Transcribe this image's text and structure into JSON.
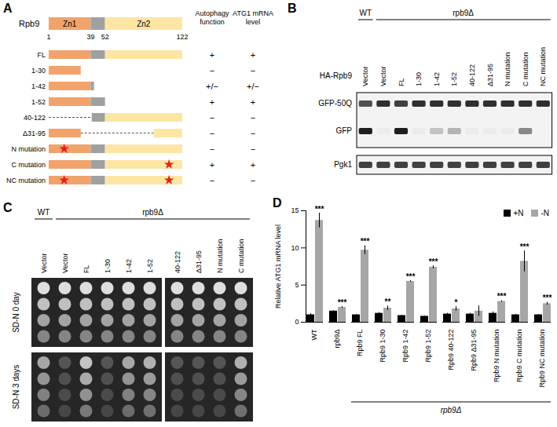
{
  "panels": {
    "A": {
      "label": "A",
      "protein": "Rpb9",
      "domains": [
        {
          "name": "Zn1",
          "start": 1,
          "end": 39,
          "color": "#f2a36b"
        },
        {
          "start": 39,
          "end": 52,
          "color": "#a0a0a0"
        },
        {
          "name": "Zn2",
          "start": 52,
          "end": 122,
          "color": "#fde6a3"
        }
      ],
      "residue_ticks": [
        1,
        39,
        52,
        122
      ],
      "columns": [
        "Autophagy function",
        "ATG1 mRNA level"
      ],
      "mutation_color": "#e02020",
      "constructs": [
        {
          "name": "FL",
          "segments": [
            [
              1,
              122
            ]
          ],
          "mutations": [],
          "results": [
            "+",
            "+"
          ]
        },
        {
          "name": "1-30",
          "segments": [
            [
              1,
              30
            ]
          ],
          "mutations": [],
          "results": [
            "−",
            "−"
          ]
        },
        {
          "name": "1-42",
          "segments": [
            [
              1,
              42
            ]
          ],
          "mutations": [],
          "results": [
            "+/−",
            "+/−"
          ]
        },
        {
          "name": "1-52",
          "segments": [
            [
              1,
              52
            ]
          ],
          "mutations": [],
          "results": [
            "+",
            "+"
          ]
        },
        {
          "name": "40-122",
          "segments": [
            [
              40,
              122
            ]
          ],
          "mutations": [],
          "results": [
            "−",
            "−"
          ]
        },
        {
          "name": "Δ31-95",
          "segments": [
            [
              1,
              30
            ],
            [
              96,
              122
            ]
          ],
          "mutations": [],
          "results": [
            "−",
            "−"
          ]
        },
        {
          "name": "N mutation",
          "segments": [
            [
              1,
              122
            ]
          ],
          "mutations": [
            15
          ],
          "results": [
            "−",
            "−"
          ]
        },
        {
          "name": "C mutation",
          "segments": [
            [
              1,
              122
            ]
          ],
          "mutations": [
            110
          ],
          "results": [
            "+",
            "+"
          ]
        },
        {
          "name": "NC mutation",
          "segments": [
            [
              1,
              122
            ]
          ],
          "mutations": [
            15,
            110
          ],
          "results": [
            "−",
            "−"
          ]
        }
      ]
    },
    "B": {
      "label": "B",
      "row_label": "HA-Rpb9",
      "lanes": [
        {
          "genotype": "WT",
          "plasmid": "Vector"
        },
        {
          "genotype": "rpb9Δ",
          "plasmid": "Vector"
        },
        {
          "genotype": "rpb9Δ",
          "plasmid": "FL"
        },
        {
          "genotype": "rpb9Δ",
          "plasmid": "1-30"
        },
        {
          "genotype": "rpb9Δ",
          "plasmid": "1-42"
        },
        {
          "genotype": "rpb9Δ",
          "plasmid": "1-52"
        },
        {
          "genotype": "rpb9Δ",
          "plasmid": "40-122"
        },
        {
          "genotype": "rpb9Δ",
          "plasmid": "Δ31-95"
        },
        {
          "genotype": "rpb9Δ",
          "plasmid": "N mutation"
        },
        {
          "genotype": "rpb9Δ",
          "plasmid": "C mutation"
        },
        {
          "genotype": "rpb9Δ",
          "plasmid": "NC mutation"
        }
      ],
      "bands": [
        {
          "name": "GFP-50Q",
          "intensity": [
            0.75,
            0.85,
            0.8,
            0.85,
            0.85,
            0.85,
            0.85,
            0.85,
            0.85,
            0.85,
            0.85
          ]
        },
        {
          "name": "GFP",
          "intensity": [
            0.9,
            0.15,
            0.9,
            0.15,
            0.35,
            0.4,
            0.15,
            0.15,
            0.15,
            0.55,
            0.1
          ]
        },
        {
          "name": "Pgk1",
          "intensity": [
            0.8,
            0.8,
            0.8,
            0.8,
            0.8,
            0.8,
            0.8,
            0.8,
            0.8,
            0.8,
            0.8
          ]
        }
      ]
    },
    "C": {
      "label": "C",
      "conditions": [
        "SD-N 0 day",
        "SD-N 3 days"
      ],
      "plates": [
        {
          "lanes": [
            {
              "genotype": "WT",
              "plasmid": "Vector"
            },
            {
              "genotype": "rpb9Δ",
              "plasmid": "Vector"
            },
            {
              "genotype": "rpb9Δ",
              "plasmid": "FL"
            },
            {
              "genotype": "rpb9Δ",
              "plasmid": "1-30"
            },
            {
              "genotype": "rpb9Δ",
              "plasmid": "1-42"
            },
            {
              "genotype": "rpb9Δ",
              "plasmid": "1-52"
            }
          ],
          "growth": [
            [
              0.9,
              0.9,
              0.9,
              0.9,
              0.9,
              0.9
            ],
            [
              0.6,
              0.15,
              0.75,
              0.15,
              0.6,
              0.65
            ]
          ]
        },
        {
          "lanes": [
            {
              "genotype": "rpb9Δ",
              "plasmid": "40-122"
            },
            {
              "genotype": "rpb9Δ",
              "plasmid": "Δ31-95"
            },
            {
              "genotype": "rpb9Δ",
              "plasmid": "N mutation"
            },
            {
              "genotype": "rpb9Δ",
              "plasmid": "C mutation"
            }
          ],
          "growth": [
            [
              0.9,
              0.9,
              0.9,
              0.9
            ],
            [
              0.15,
              0.15,
              0.15,
              0.65
            ]
          ]
        }
      ]
    }
  },
  "chart_data": {
    "type": "bar",
    "panel_label": "D",
    "categories": [
      "WT",
      "rpb9Δ",
      "Rpb9 FL",
      "Rpb9 1-30",
      "Rpb9 1-42",
      "Rpb9 1-52",
      "Rpb9 40-122",
      "Rpb9 Δ31-95",
      "Rpb9 N mutation",
      "Rpb9 C mutation",
      "Rpb9 NC mutation"
    ],
    "series": [
      {
        "name": "+N",
        "color": "#000000",
        "values": [
          1.0,
          1.5,
          1.0,
          1.2,
          0.9,
          0.8,
          1.1,
          1.1,
          1.2,
          1.0,
          1.0
        ],
        "errors": [
          0.15,
          0.05,
          0.05,
          0.1,
          0.05,
          0.05,
          0.1,
          0.1,
          0.2,
          0.05,
          0.05
        ]
      },
      {
        "name": "-N",
        "color": "#a6a6a6",
        "values": [
          13.7,
          2.0,
          9.7,
          1.9,
          5.5,
          7.4,
          1.8,
          1.5,
          2.8,
          8.2,
          2.5
        ],
        "errors": [
          1.0,
          0.1,
          0.6,
          0.3,
          0.1,
          0.2,
          0.3,
          0.7,
          0.1,
          1.4,
          0.2
        ],
        "significance": [
          "***",
          "***",
          "***",
          "**",
          "***",
          "***",
          "*",
          null,
          "***",
          "***",
          "***"
        ]
      }
    ],
    "ylabel": "Relative ATG1 mRNA level",
    "ylim": [
      0,
      15
    ],
    "yticks": [
      0,
      5,
      10,
      15
    ],
    "legend": "top-right",
    "group": {
      "label": "rpb9Δ",
      "from": "Rpb9 FL",
      "to": "Rpb9 NC mutation"
    }
  }
}
